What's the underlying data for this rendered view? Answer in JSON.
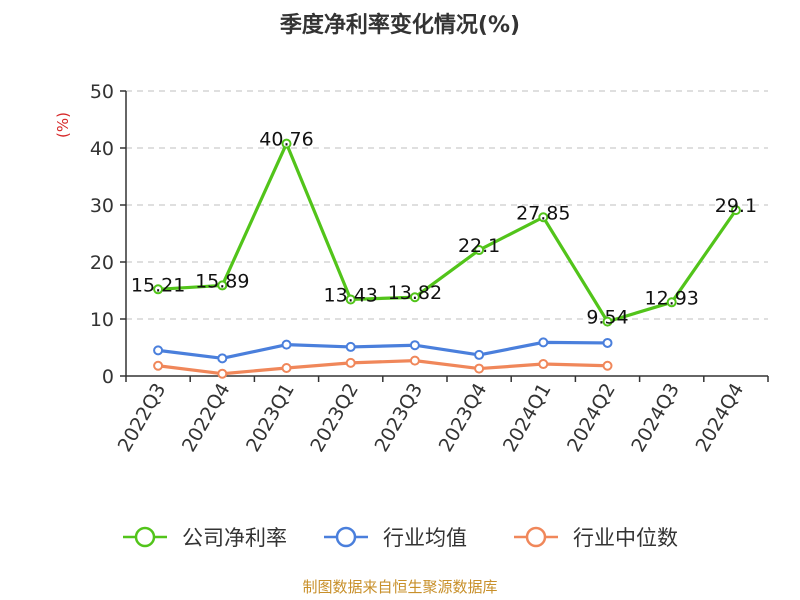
{
  "title": "季度净利率变化情况(%)",
  "source": "制图数据来自恒生聚源数据库",
  "chart_data": {
    "type": "line",
    "title": "季度净利率变化情况(%)",
    "ylabel": "(%)",
    "xlabel": "",
    "ylim": [
      0,
      50
    ],
    "yticks": [
      0,
      10,
      20,
      30,
      40,
      50
    ],
    "grid": true,
    "legend_position": "bottom",
    "categories": [
      "2022Q3",
      "2022Q4",
      "2023Q1",
      "2023Q2",
      "2023Q3",
      "2023Q4",
      "2024Q1",
      "2024Q2",
      "2024Q3",
      "2024Q4"
    ],
    "series": [
      {
        "name": "公司净利率",
        "color": "#52c41a",
        "values": [
          15.21,
          15.89,
          40.76,
          13.43,
          13.82,
          22.1,
          27.85,
          9.54,
          12.93,
          29.1
        ],
        "labels": [
          "15.21",
          "15.89",
          "40.76",
          "13.43",
          "13.82",
          "22.1",
          "27.85",
          "9.54",
          "12.93",
          "29.1"
        ]
      },
      {
        "name": "行业均值",
        "color": "#4a7fdc",
        "values": [
          4.5,
          3.1,
          5.5,
          5.1,
          5.4,
          3.7,
          5.9,
          5.8,
          null,
          null
        ]
      },
      {
        "name": "行业中位数",
        "color": "#f0875a",
        "values": [
          1.8,
          0.4,
          1.4,
          2.3,
          2.7,
          1.3,
          2.1,
          1.8,
          null,
          null
        ]
      }
    ]
  }
}
